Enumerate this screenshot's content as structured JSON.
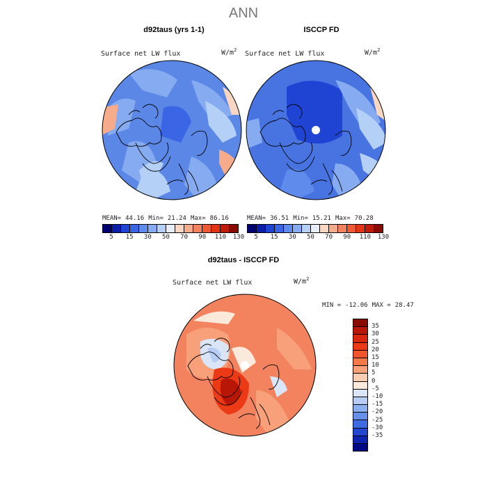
{
  "title": "ANN",
  "panels": {
    "model": {
      "title": "d92taus (yrs 1-1)",
      "variable": "Surface net LW flux",
      "units_base": "W/m",
      "units_exp": "2",
      "stats": {
        "mean_label": "MEAN=",
        "mean": "44.16",
        "min_label": "Min=",
        "min": "21.24",
        "max_label": "Max=",
        "max": "86.16"
      }
    },
    "obs": {
      "title": "ISCCP FD",
      "variable": "Surface net LW flux",
      "units_base": "W/m",
      "units_exp": "2",
      "stats": {
        "mean_label": "MEAN=",
        "mean": "36.51",
        "min_label": "Min=",
        "min": "15.21",
        "max_label": "Max=",
        "max": "70.28"
      }
    },
    "diff": {
      "title": "d92taus - ISCCP FD",
      "variable": "Surface net LW flux",
      "units_base": "W/m",
      "units_exp": "2",
      "stats": {
        "min_label": "MIN =",
        "min": "-12.06",
        "max_label": "MAX =",
        "max": "28.47"
      }
    }
  },
  "colorbar_abs": {
    "colors": [
      "#00006e",
      "#0a1fa8",
      "#1f44d4",
      "#3a66e6",
      "#5f8bec",
      "#86abf1",
      "#b5d0f6",
      "#e8eef6",
      "#f9d6c2",
      "#f6ab8a",
      "#f3835f",
      "#ef5a33",
      "#e33418",
      "#c01a0a",
      "#8a0a00"
    ],
    "ticks": [
      "5",
      "15",
      "30",
      "50",
      "70",
      "90",
      "110",
      "130"
    ]
  },
  "colorbar_diff": {
    "colors": [
      "#8a0a00",
      "#b81606",
      "#d8260f",
      "#ec3a17",
      "#f2552c",
      "#f57848",
      "#f7a07a",
      "#f9cdb1",
      "#fbe9dc",
      "#dae6f7",
      "#b7cdf3",
      "#8cb0ef",
      "#6690ea",
      "#3f6ce2",
      "#2447d2",
      "#0e24b0",
      "#010a84"
    ],
    "ticks": [
      "35",
      "30",
      "25",
      "20",
      "15",
      "10",
      "5",
      "0",
      "-5",
      "-10",
      "-15",
      "-20",
      "-25",
      "-30",
      "-35"
    ]
  },
  "colors": {
    "map_model_base": "#5b87e6",
    "map_obs_base": "#4874e2",
    "map_diff_base": "#f3835f"
  }
}
